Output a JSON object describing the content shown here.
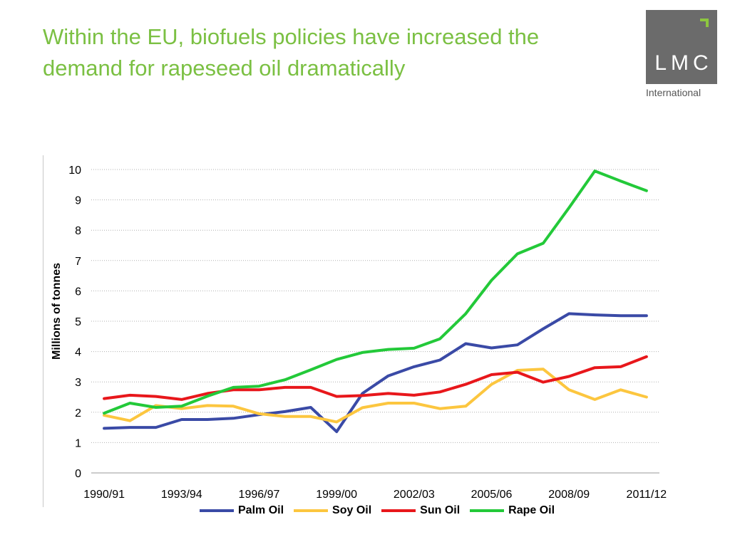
{
  "title": {
    "line1": "Within the EU, biofuels policies have increased the",
    "line2": "demand for rapeseed oil dramatically"
  },
  "logo": {
    "mark_icon": "corner-bracket-icon",
    "text": "LMC",
    "subtitle": "International"
  },
  "colors": {
    "title": "#7bc043",
    "logo_bg": "#6b6b6b",
    "logo_mark": "#8dc63f"
  },
  "chart_data": {
    "type": "line",
    "ylabel": "Millions of tonnes",
    "xlabel": "",
    "ylim": [
      0,
      10
    ],
    "yticks": [
      "0",
      "1",
      "2",
      "3",
      "4",
      "5",
      "6",
      "7",
      "8",
      "9",
      "10"
    ],
    "grid": "horizontal dotted",
    "legend_position": "bottom",
    "x": [
      "1990/91",
      "1991/92",
      "1992/93",
      "1993/94",
      "1994/95",
      "1995/96",
      "1996/97",
      "1997/98",
      "1998/99",
      "1999/00",
      "2000/01",
      "2001/02",
      "2002/03",
      "2003/04",
      "2004/05",
      "2005/06",
      "2006/07",
      "2007/08",
      "2008/09",
      "2009/10",
      "2010/11",
      "2011/12"
    ],
    "x_tick_labels": [
      "1990/91",
      "1993/94",
      "1996/97",
      "1999/00",
      "2002/03",
      "2005/06",
      "2008/09",
      "2011/12"
    ],
    "series": [
      {
        "name": "Palm Oil",
        "color": "#3a4aa6",
        "values": [
          1.47,
          1.5,
          1.5,
          1.76,
          1.76,
          1.8,
          1.92,
          2.02,
          2.16,
          1.36,
          2.62,
          3.2,
          3.5,
          3.72,
          4.26,
          4.12,
          4.22,
          4.75,
          5.25,
          5.21,
          5.18,
          5.18
        ]
      },
      {
        "name": "Soy Oil",
        "color": "#fcc63f",
        "values": [
          1.9,
          1.72,
          2.22,
          2.12,
          2.22,
          2.2,
          1.95,
          1.86,
          1.86,
          1.68,
          2.15,
          2.3,
          2.3,
          2.12,
          2.2,
          2.92,
          3.38,
          3.42,
          2.74,
          2.42,
          2.74,
          2.5
        ]
      },
      {
        "name": "Sun Oil",
        "color": "#e8171b",
        "values": [
          2.45,
          2.56,
          2.52,
          2.42,
          2.62,
          2.74,
          2.74,
          2.82,
          2.82,
          2.52,
          2.55,
          2.62,
          2.56,
          2.67,
          2.92,
          3.24,
          3.32,
          2.99,
          3.18,
          3.47,
          3.5,
          3.83
        ]
      },
      {
        "name": "Rape Oil",
        "color": "#23c939",
        "values": [
          1.97,
          2.3,
          2.16,
          2.2,
          2.53,
          2.82,
          2.86,
          3.07,
          3.4,
          3.74,
          3.97,
          4.07,
          4.11,
          4.42,
          5.25,
          6.35,
          7.22,
          7.57,
          8.74,
          9.95,
          9.62,
          9.3
        ]
      }
    ]
  }
}
